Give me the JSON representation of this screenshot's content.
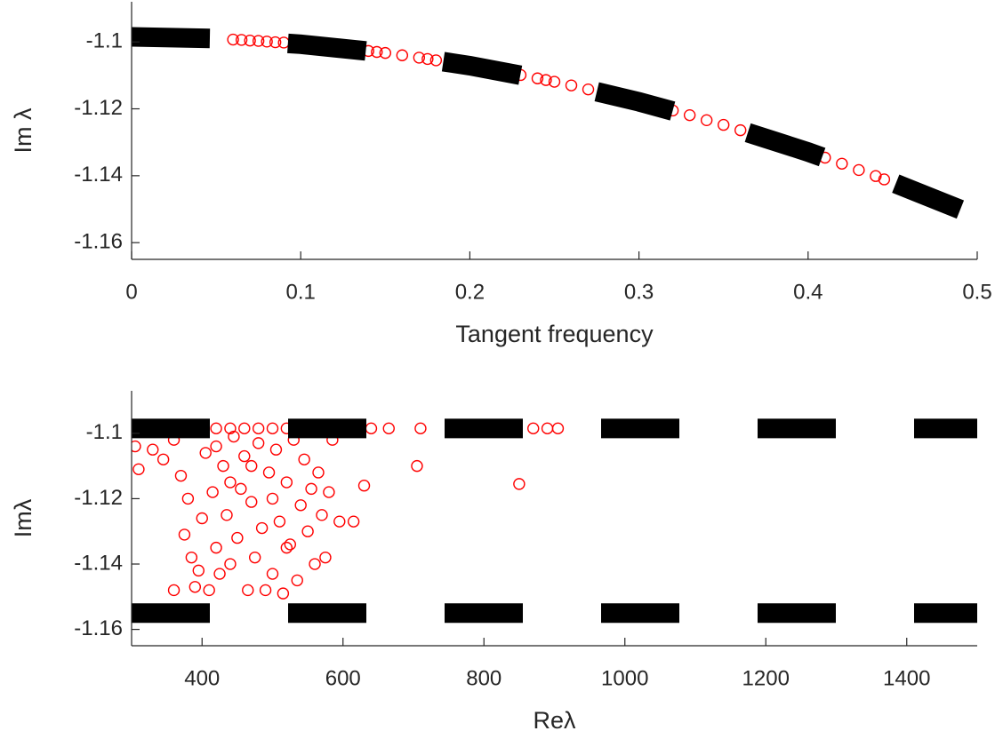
{
  "chart_data": [
    {
      "type": "scatter",
      "xlabel": "Tangent frequency",
      "ylabel": "Im λ",
      "xlim": [
        0,
        0.5
      ],
      "xticks": [
        0,
        0.1,
        0.2,
        0.3,
        0.4,
        0.5
      ],
      "ylim": [
        -1.165,
        -1.088
      ],
      "yticks": [
        -1.16,
        -1.14,
        -1.12,
        -1.1
      ],
      "series": [
        {
          "type": "scatter",
          "marker": "o",
          "color": "#ff0000",
          "x": [
            0,
            0.005,
            0.06,
            0.065,
            0.07,
            0.075,
            0.08,
            0.085,
            0.09,
            0.14,
            0.145,
            0.15,
            0.16,
            0.17,
            0.175,
            0.18,
            0.23,
            0.24,
            0.245,
            0.25,
            0.26,
            0.27,
            0.32,
            0.33,
            0.34,
            0.35,
            0.36,
            0.41,
            0.42,
            0.43,
            0.44,
            0.445
          ],
          "values": [
            -1.0985,
            -1.0985,
            -1.0993,
            -1.0994,
            -1.0996,
            -1.0997,
            -1.0999,
            -1.1001,
            -1.1002,
            -1.1027,
            -1.103,
            -1.1033,
            -1.104,
            -1.1047,
            -1.1051,
            -1.1055,
            -1.1099,
            -1.1109,
            -1.1114,
            -1.1119,
            -1.113,
            -1.1142,
            -1.1205,
            -1.1219,
            -1.1234,
            -1.1248,
            -1.1264,
            -1.1346,
            -1.1364,
            -1.1383,
            -1.1401,
            -1.1411
          ]
        },
        {
          "type": "line",
          "linestyle": "--",
          "color": "#000000",
          "x": [
            0,
            0.05,
            0.1,
            0.15,
            0.2,
            0.25,
            0.3,
            0.35,
            0.4,
            0.45,
            0.49
          ],
          "values": [
            -1.0985,
            -1.099,
            -1.1007,
            -1.1033,
            -1.1071,
            -1.1119,
            -1.1179,
            -1.1248,
            -1.1329,
            -1.142,
            -1.1501
          ]
        }
      ]
    },
    {
      "type": "scatter",
      "xlabel": "Reλ",
      "ylabel": "Imλ",
      "xlim": [
        300,
        1500
      ],
      "xticks": [
        400,
        600,
        800,
        1000,
        1200,
        1400
      ],
      "ylim": [
        -1.165,
        -1.087
      ],
      "yticks": [
        -1.16,
        -1.14,
        -1.12,
        -1.1
      ],
      "series": [
        {
          "type": "scatter",
          "marker": "o",
          "color": "#ff0000",
          "x": [
            300,
            330,
            360,
            390,
            420,
            440,
            460,
            480,
            500,
            520,
            540,
            560,
            580,
            600,
            620,
            640,
            665,
            710,
            760,
            790,
            870,
            890,
            905,
            305,
            310,
            330,
            345,
            360,
            370,
            375,
            380,
            385,
            390,
            395,
            400,
            405,
            410,
            415,
            420,
            425,
            430,
            435,
            440,
            445,
            450,
            455,
            460,
            465,
            470,
            475,
            480,
            485,
            490,
            495,
            500,
            505,
            510,
            515,
            520,
            525,
            530,
            535,
            540,
            545,
            550,
            555,
            560,
            565,
            570,
            575,
            580,
            585,
            595,
            615,
            630,
            705,
            850,
            360,
            470,
            500,
            520,
            440,
            420
          ],
          "values": [
            -1.0985,
            -1.0985,
            -1.0985,
            -1.0985,
            -1.0985,
            -1.0985,
            -1.0985,
            -1.0985,
            -1.0985,
            -1.0985,
            -1.0985,
            -1.0985,
            -1.0985,
            -1.0985,
            -1.0985,
            -1.0985,
            -1.0985,
            -1.0985,
            -1.0985,
            -1.0985,
            -1.0985,
            -1.0985,
            -1.0985,
            -1.104,
            -1.111,
            -1.105,
            -1.108,
            -1.102,
            -1.113,
            -1.131,
            -1.12,
            -1.138,
            -1.147,
            -1.142,
            -1.126,
            -1.106,
            -1.148,
            -1.118,
            -1.135,
            -1.143,
            -1.11,
            -1.125,
            -1.14,
            -1.101,
            -1.132,
            -1.117,
            -1.107,
            -1.148,
            -1.121,
            -1.138,
            -1.103,
            -1.129,
            -1.148,
            -1.112,
            -1.143,
            -1.105,
            -1.127,
            -1.149,
            -1.115,
            -1.134,
            -1.102,
            -1.145,
            -1.122,
            -1.108,
            -1.13,
            -1.117,
            -1.14,
            -1.112,
            -1.125,
            -1.138,
            -1.118,
            -1.102,
            -1.127,
            -1.127,
            -1.116,
            -1.11,
            -1.1155,
            -1.148,
            -1.11,
            -1.12,
            -1.135,
            -1.115,
            -1.104
          ]
        },
        {
          "type": "line",
          "linestyle": "--",
          "color": "#000000",
          "x": [
            300,
            1500
          ],
          "values": [
            -1.0985,
            -1.0985
          ]
        },
        {
          "type": "line",
          "linestyle": "--",
          "color": "#000000",
          "x": [
            300,
            1500
          ],
          "values": [
            -1.155,
            -1.155
          ]
        }
      ]
    }
  ]
}
